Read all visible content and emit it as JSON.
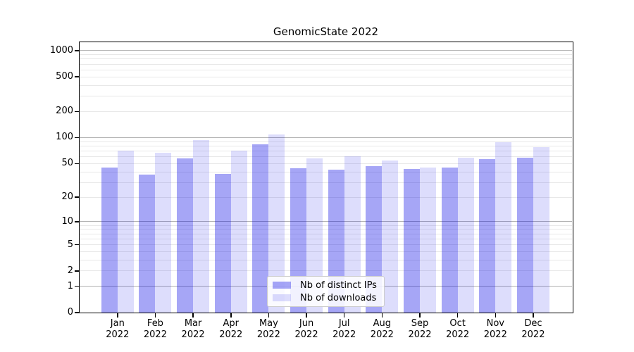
{
  "chart_data": {
    "type": "bar",
    "title": "GenomicState 2022",
    "categories": [
      "Jan 2022",
      "Feb 2022",
      "Mar 2022",
      "Apr 2022",
      "May 2022",
      "Jun 2022",
      "Jul 2022",
      "Aug 2022",
      "Sep 2022",
      "Oct 2022",
      "Nov 2022",
      "Dec 2022"
    ],
    "series": [
      {
        "name": "Nb of distinct IPs",
        "color": "rgba(0,0,230,0.35)",
        "values": [
          45,
          37,
          57,
          38,
          83,
          44,
          42,
          47,
          43,
          45,
          56,
          58
        ]
      },
      {
        "name": "Nb of downloads",
        "color": "rgba(0,0,230,0.135)",
        "values": [
          71,
          67,
          93,
          71,
          108,
          57,
          61,
          54,
          45,
          59,
          88,
          77
        ]
      }
    ],
    "xlabel": "",
    "ylabel": "",
    "y_scale": "log10(value+1)",
    "ylim": [
      0,
      1250
    ],
    "y_tick_labels": [
      "1000",
      "500",
      "200",
      "100",
      "50",
      "20",
      "10",
      "5",
      "2",
      "1",
      "0"
    ],
    "y_tick_values": [
      1000,
      500,
      200,
      100,
      50,
      20,
      10,
      5,
      2,
      1,
      0
    ],
    "y_major_gridlines": [
      1,
      10,
      100,
      1000
    ],
    "y_minor_gridlines": [
      2,
      3,
      4,
      5,
      6,
      7,
      8,
      9,
      20,
      30,
      40,
      50,
      60,
      70,
      80,
      90,
      200,
      300,
      400,
      500,
      600,
      700,
      800,
      900
    ],
    "grid": true,
    "legend_position": "lower center inside",
    "colors": {
      "major_grid": "#b2b2b2",
      "minor_grid": "#e8e8e8",
      "axis": "#000000",
      "background": "#ffffff"
    }
  }
}
